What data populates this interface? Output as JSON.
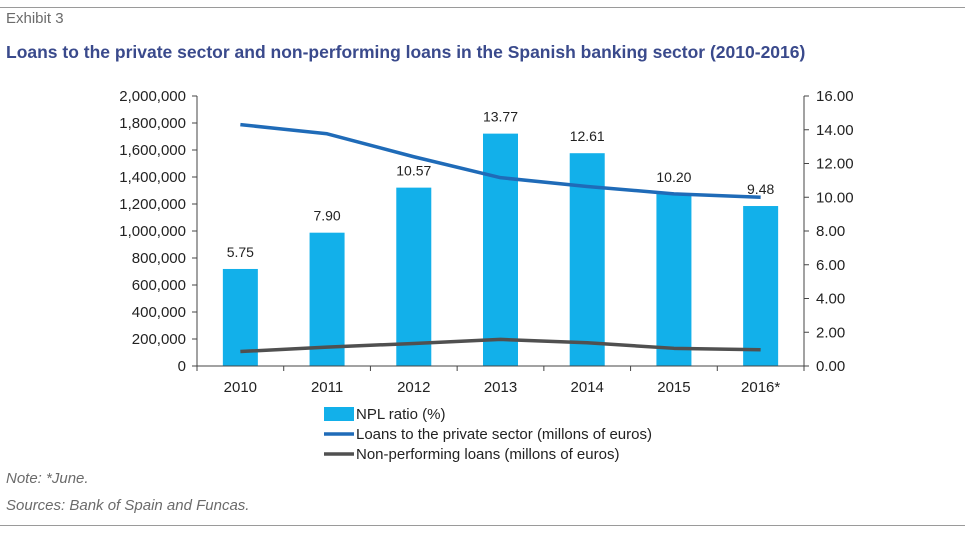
{
  "header": {
    "exhibit": "Exhibit 3",
    "title": "Loans to the private sector and non-performing loans in the Spanish banking sector (2010-2016)"
  },
  "footer": {
    "note": "Note: *June.",
    "sources": "Sources: Bank of Spain and Funcas."
  },
  "chart_data": {
    "type": "bar",
    "categories": [
      "2010",
      "2011",
      "2012",
      "2013",
      "2014",
      "2015",
      "2016*"
    ],
    "y_left": {
      "min": 0,
      "max": 2000000,
      "step": 200000,
      "ticks": [
        "0",
        "200,000",
        "400,000",
        "600,000",
        "800,000",
        "1,000,000",
        "1,200,000",
        "1,400,000",
        "1,600,000",
        "1,800,000",
        "2,000,000"
      ]
    },
    "y_right": {
      "min": 0,
      "max": 16,
      "step": 2,
      "ticks": [
        "0.00",
        "2.00",
        "4.00",
        "6.00",
        "8.00",
        "10.00",
        "12.00",
        "14.00",
        "16.00"
      ]
    },
    "series": [
      {
        "name": "NPL ratio  (%)",
        "kind": "bar",
        "axis": "right",
        "color": "#12b0ea",
        "values": [
          5.75,
          7.9,
          10.57,
          13.77,
          12.61,
          10.2,
          9.48
        ],
        "labels": [
          "5.75",
          "7.90",
          "10.57",
          "13.77",
          "12.61",
          "10.20",
          "9.48"
        ]
      },
      {
        "name": "Loans to the private sector (millons of euros)",
        "kind": "line",
        "axis": "left",
        "color": "#1f6bb8",
        "values": [
          1788000,
          1720000,
          1550000,
          1395000,
          1330000,
          1275000,
          1250000
        ]
      },
      {
        "name": "Non-performing loans (millons of euros)",
        "kind": "line",
        "axis": "left",
        "color": "#505050",
        "values": [
          107000,
          140000,
          167000,
          197000,
          172000,
          131000,
          120000
        ]
      }
    ],
    "grid": false,
    "legend_position": "bottom"
  }
}
